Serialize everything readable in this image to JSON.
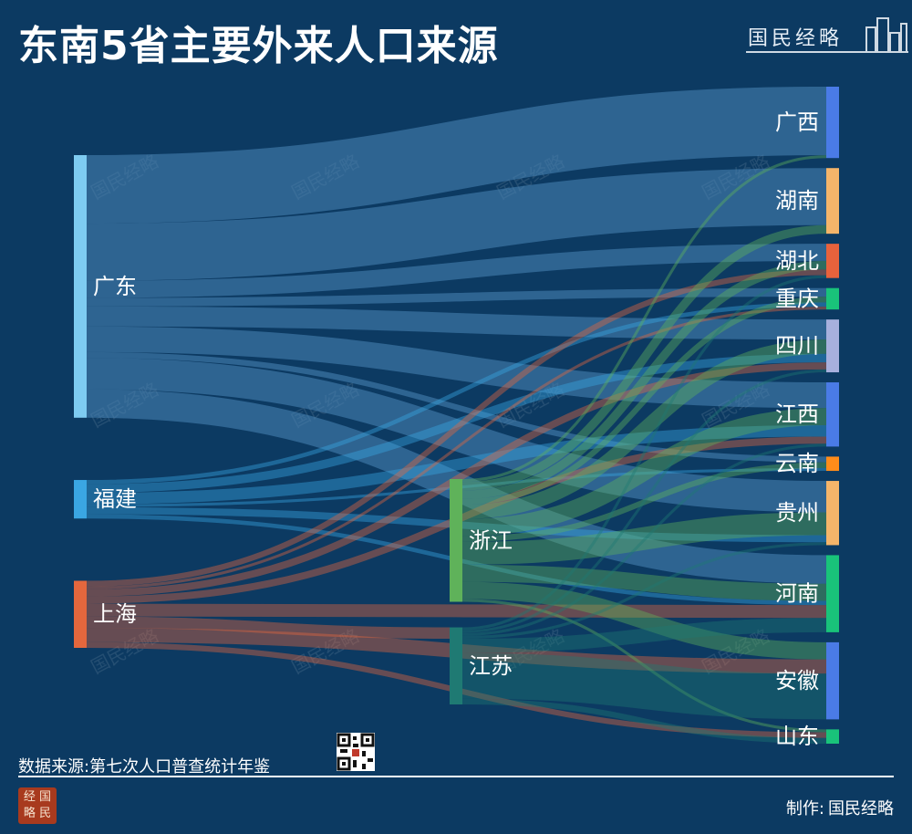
{
  "title": "东南5省主要外来人口来源",
  "brand": {
    "name": "国民经略"
  },
  "watermark": {
    "text": "国民经略"
  },
  "footer": {
    "source": "数据来源:第七次人口普查统计年鉴",
    "maker_label": "制作:",
    "maker_name": "国民经略"
  },
  "seal": {
    "chars": [
      "经",
      "国",
      "略",
      "民"
    ]
  },
  "chart_data": {
    "type": "sankey",
    "title": "东南5省主要外来人口来源",
    "colors": {
      "background": "#0c3a62",
      "source_band": "#4a86b8",
      "text": "#ffffff"
    },
    "nodes": [
      {
        "id": "广东",
        "column": 0,
        "color": "#7ecbf1"
      },
      {
        "id": "福建",
        "column": 0,
        "color": "#3aa6e3"
      },
      {
        "id": "上海",
        "column": 0,
        "color": "#e4673d"
      },
      {
        "id": "浙江",
        "column": 1,
        "color": "#5fb25a"
      },
      {
        "id": "江苏",
        "column": 1,
        "color": "#1f7a73"
      },
      {
        "id": "广西",
        "column": 2,
        "color": "#4a7be6"
      },
      {
        "id": "湖南",
        "column": 2,
        "color": "#f5b56a"
      },
      {
        "id": "湖北",
        "column": 2,
        "color": "#e8623c"
      },
      {
        "id": "重庆",
        "column": 2,
        "color": "#19c37a"
      },
      {
        "id": "四川",
        "column": 2,
        "color": "#a7b0dd"
      },
      {
        "id": "江西",
        "column": 2,
        "color": "#4a7be6"
      },
      {
        "id": "云南",
        "column": 2,
        "color": "#ff8c1a"
      },
      {
        "id": "贵州",
        "column": 2,
        "color": "#f5b56a"
      },
      {
        "id": "河南",
        "column": 2,
        "color": "#19c37a"
      },
      {
        "id": "安徽",
        "column": 2,
        "color": "#4a7be6"
      },
      {
        "id": "山东",
        "column": 2,
        "color": "#19c37a"
      }
    ],
    "links": [
      {
        "source": "广东",
        "target": "广西",
        "value": 48
      },
      {
        "source": "广东",
        "target": "湖南",
        "value": 40
      },
      {
        "source": "广东",
        "target": "湖北",
        "value": 12
      },
      {
        "source": "广东",
        "target": "重庆",
        "value": 6
      },
      {
        "source": "广东",
        "target": "四川",
        "value": 14
      },
      {
        "source": "广东",
        "target": "江西",
        "value": 18
      },
      {
        "source": "广东",
        "target": "云南",
        "value": 4
      },
      {
        "source": "广东",
        "target": "贵州",
        "value": 22
      },
      {
        "source": "广东",
        "target": "河南",
        "value": 20
      },
      {
        "source": "福建",
        "target": "江西",
        "value": 8
      },
      {
        "source": "福建",
        "target": "四川",
        "value": 6
      },
      {
        "source": "福建",
        "target": "贵州",
        "value": 5
      },
      {
        "source": "福建",
        "target": "重庆",
        "value": 3
      },
      {
        "source": "福建",
        "target": "云南",
        "value": 2
      },
      {
        "source": "福建",
        "target": "河南",
        "value": 3
      },
      {
        "source": "上海",
        "target": "安徽",
        "value": 10
      },
      {
        "source": "上海",
        "target": "江苏",
        "value": 8
      },
      {
        "source": "上海",
        "target": "河南",
        "value": 9
      },
      {
        "source": "上海",
        "target": "四川",
        "value": 5
      },
      {
        "source": "上海",
        "target": "江西",
        "value": 5
      },
      {
        "source": "上海",
        "target": "山东",
        "value": 4
      },
      {
        "source": "上海",
        "target": "湖北",
        "value": 4
      },
      {
        "source": "上海",
        "target": "重庆",
        "value": 2
      },
      {
        "source": "浙江",
        "target": "安徽",
        "value": 12
      },
      {
        "source": "浙江",
        "target": "贵州",
        "value": 16
      },
      {
        "source": "浙江",
        "target": "河南",
        "value": 12
      },
      {
        "source": "浙江",
        "target": "江西",
        "value": 12
      },
      {
        "source": "浙江",
        "target": "四川",
        "value": 10
      },
      {
        "source": "浙江",
        "target": "湖南",
        "value": 6
      },
      {
        "source": "浙江",
        "target": "湖北",
        "value": 6
      },
      {
        "source": "浙江",
        "target": "云南",
        "value": 4
      },
      {
        "source": "浙江",
        "target": "重庆",
        "value": 4
      },
      {
        "source": "浙江",
        "target": "广西",
        "value": 2
      },
      {
        "source": "浙江",
        "target": "山东",
        "value": 2
      },
      {
        "source": "江苏",
        "target": "安徽",
        "value": 32
      },
      {
        "source": "江苏",
        "target": "河南",
        "value": 10
      },
      {
        "source": "江苏",
        "target": "山东",
        "value": 4
      },
      {
        "source": "江苏",
        "target": "四川",
        "value": 2
      },
      {
        "source": "江苏",
        "target": "贵州",
        "value": 2
      },
      {
        "source": "江苏",
        "target": "江西",
        "value": 2
      },
      {
        "source": "江苏",
        "target": "湖北",
        "value": 2
      }
    ]
  }
}
